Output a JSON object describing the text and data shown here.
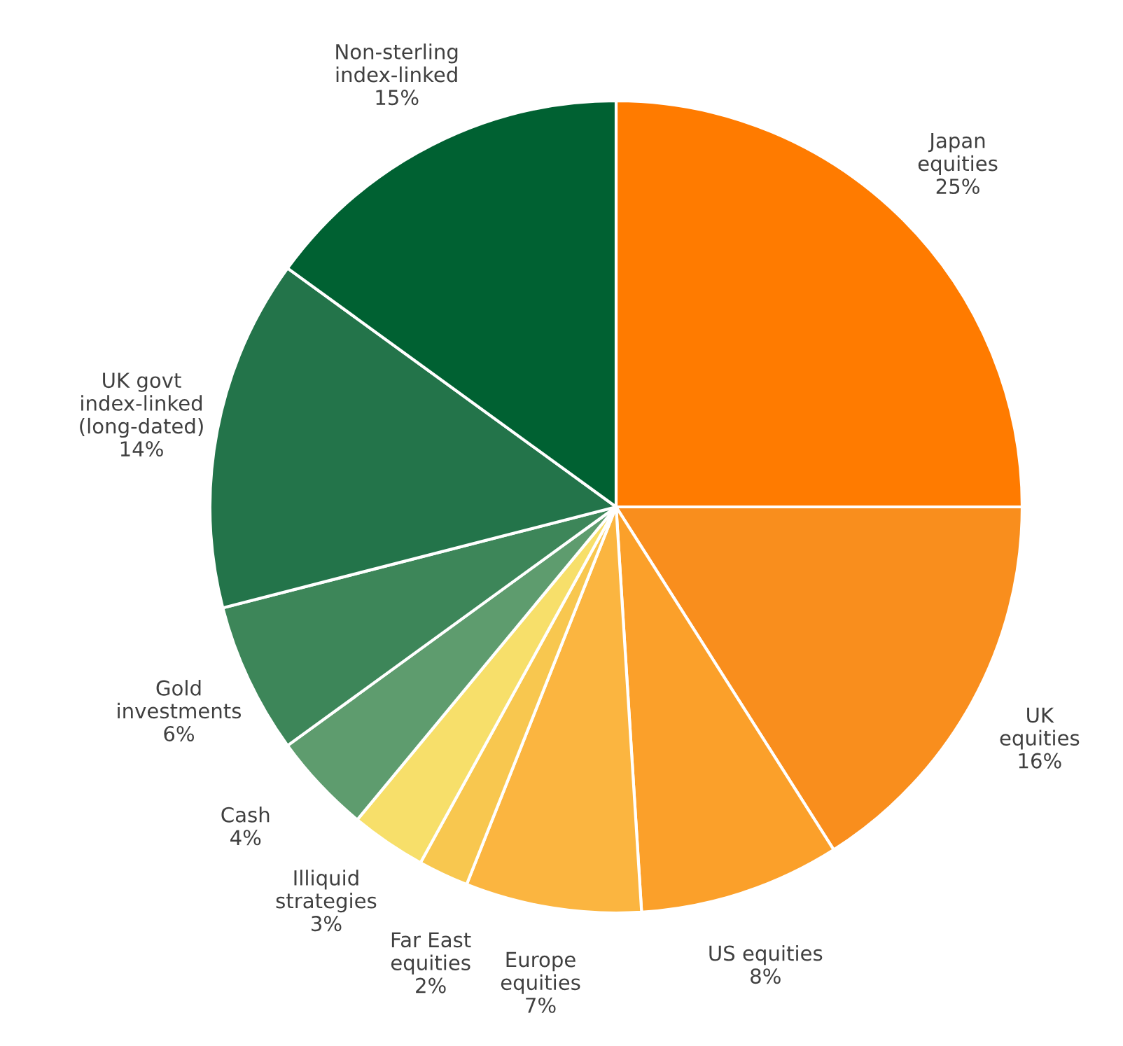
{
  "chart_data": {
    "type": "pie",
    "categories": [
      "Japan\nequities",
      "UK\nequities",
      "US equities",
      "Europe\nequities",
      "Far East\nequities",
      "Illiquid\nstrategies",
      "Cash",
      "Gold\ninvestments",
      "UK govt\nindex-linked\n(long-dated)",
      "Non-sterling\nindex-linked"
    ],
    "values": [
      25,
      16,
      8,
      7,
      2,
      3,
      4,
      6,
      14,
      15
    ],
    "value_labels": [
      "25%",
      "16%",
      "8%",
      "7%",
      "2%",
      "3%",
      "4%",
      "6%",
      "14%",
      "15%"
    ],
    "colors": [
      "#ff7b00",
      "#f98e1d",
      "#fba02a",
      "#fbb540",
      "#f8c74f",
      "#f7df6a",
      "#5e9c6e",
      "#3d8659",
      "#23744a",
      "#006132"
    ]
  }
}
